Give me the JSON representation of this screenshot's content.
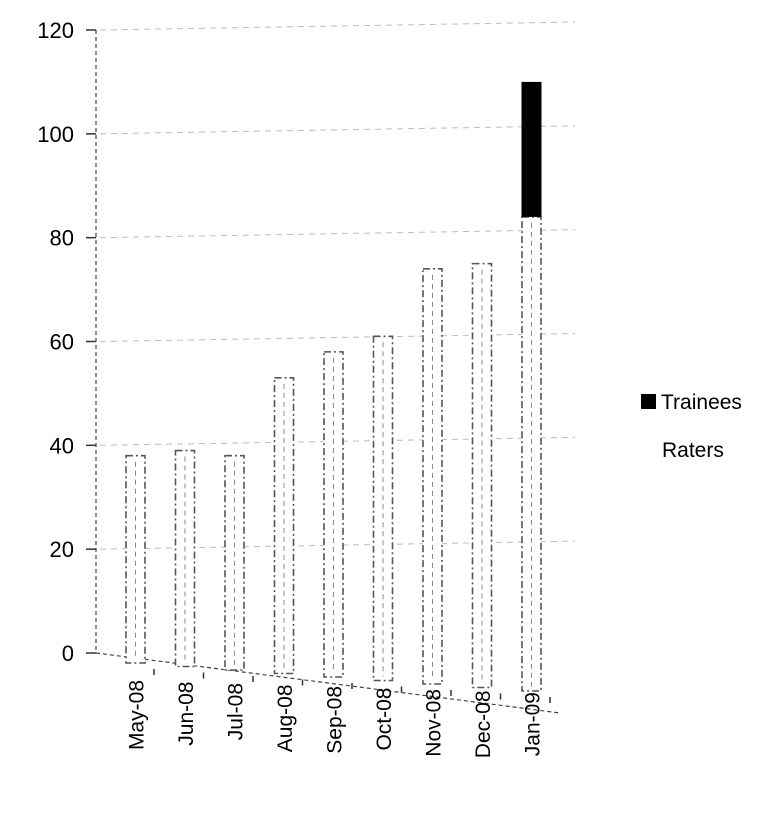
{
  "chart_data": {
    "type": "bar",
    "stacked": true,
    "title": "",
    "xlabel": "",
    "ylabel": "",
    "ylim": [
      0,
      120
    ],
    "yticks": [
      0,
      20,
      40,
      60,
      80,
      100,
      120
    ],
    "yticks_labels": [
      "0",
      "20",
      "40",
      "60",
      "80",
      "100",
      "120"
    ],
    "grid": true,
    "legend_position": "right",
    "categories": [
      "May-08",
      "Jun-08",
      "Jul-08",
      "Aug-08",
      "Sep-08",
      "Oct-08",
      "Nov-08",
      "Dec-08",
      "Jan-09"
    ],
    "series": [
      {
        "name": "Raters",
        "values": [
          38,
          39,
          38,
          53,
          58,
          61,
          74,
          75,
          84
        ],
        "color": "#ffffff"
      },
      {
        "name": "Trainees",
        "values": [
          0,
          0,
          0,
          0,
          0,
          0,
          0,
          0,
          26
        ],
        "color": "#000000"
      }
    ]
  }
}
